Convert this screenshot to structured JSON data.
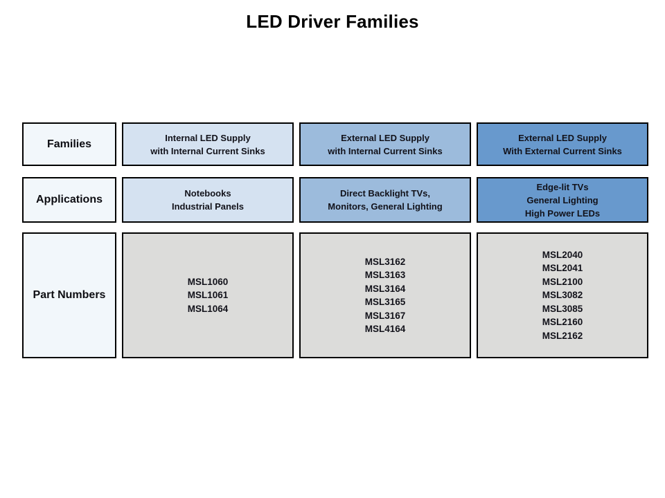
{
  "title": "LED Driver Families",
  "colors": {
    "label_bg": "#f2f7fb",
    "light_blue": "#d5e2f1",
    "medium_blue": "#9cbbdc",
    "dark_blue": "#6899cd",
    "gray": "#dcdcda",
    "border": "#000000"
  },
  "rows": [
    {
      "label": "Families",
      "cells": [
        {
          "lines": [
            "Internal LED Supply",
            "with Internal Current Sinks"
          ]
        },
        {
          "lines": [
            "External LED Supply",
            "with Internal Current Sinks"
          ]
        },
        {
          "lines": [
            "External LED Supply",
            "With External Current Sinks"
          ]
        }
      ]
    },
    {
      "label": "Applications",
      "cells": [
        {
          "lines": [
            "Notebooks",
            "Industrial Panels"
          ]
        },
        {
          "lines": [
            "Direct Backlight TVs,",
            "Monitors, General Lighting"
          ]
        },
        {
          "lines": [
            "Edge-lit TVs",
            "General Lighting",
            "High Power LEDs"
          ]
        }
      ]
    },
    {
      "label": "Part Numbers",
      "cells": [
        {
          "lines": [
            "MSL1060",
            "MSL1061",
            "MSL1064"
          ]
        },
        {
          "lines": [
            "MSL3162",
            "MSL3163",
            "MSL3164",
            "MSL3165",
            "MSL3167",
            "MSL4164"
          ]
        },
        {
          "lines": [
            "MSL2040",
            "MSL2041",
            "MSL2100",
            "MSL3082",
            "MSL3085",
            "MSL2160",
            "MSL2162"
          ]
        }
      ]
    }
  ]
}
